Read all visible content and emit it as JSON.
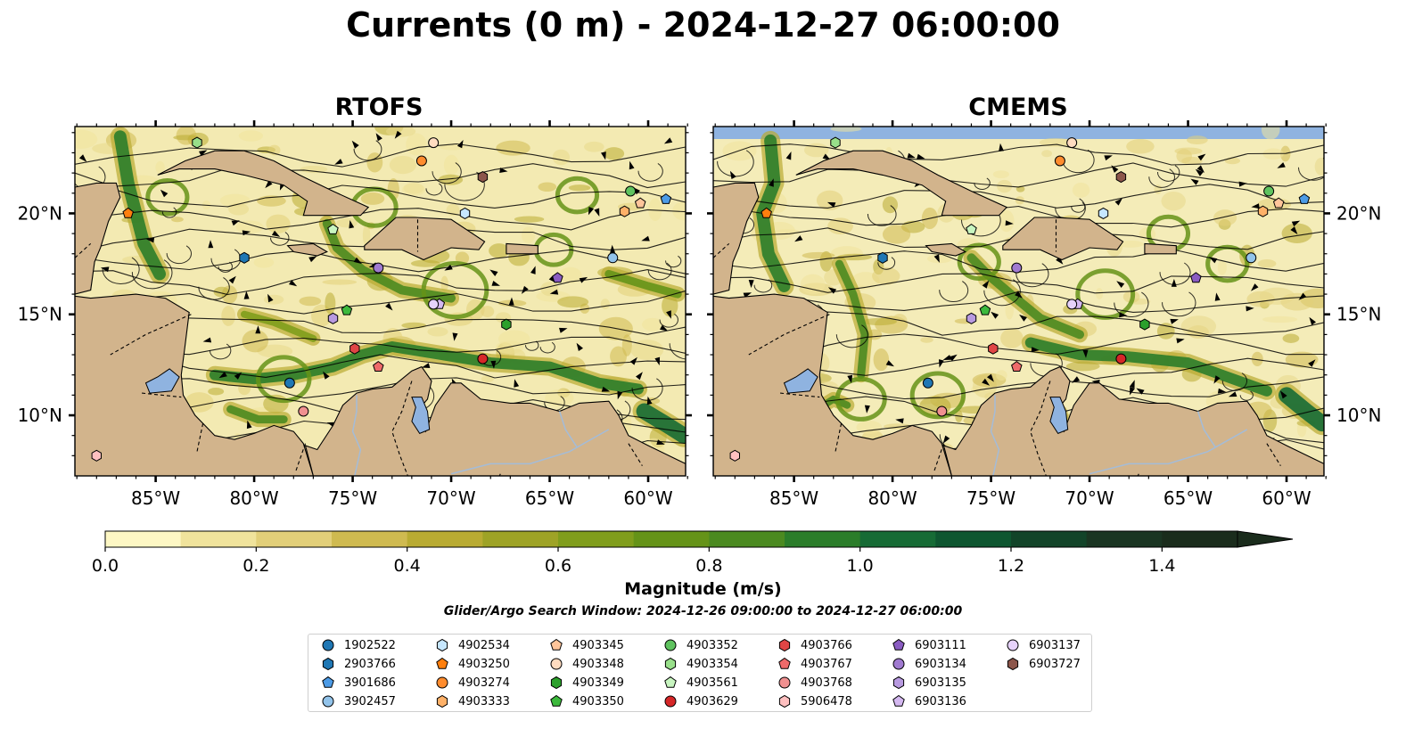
{
  "title": "Currents (0 m) - 2024-12-27 06:00:00",
  "panels": [
    {
      "title": "RTOFS",
      "seaColor": "#f3eab2"
    },
    {
      "title": "CMEMS",
      "seaColor": "#f4ecb8",
      "topBand": "#8fb3e0"
    }
  ],
  "colors": {
    "land": "#d2b48c",
    "lake": "#8fb3e0",
    "river": "#a4bcd8",
    "coast": "#000000"
  },
  "lat_labels": [
    "20°N",
    "15°N",
    "10°N"
  ],
  "lon_labels": [
    "85°W",
    "80°W",
    "75°W",
    "70°W",
    "65°W",
    "60°W"
  ],
  "colorbar": {
    "label": "Magnitude (m/s)",
    "ticks": [
      "0.0",
      "0.2",
      "0.4",
      "0.6",
      "0.8",
      "1.0",
      "1.2",
      "1.4"
    ],
    "colors": [
      "#fdf7c4",
      "#f0e39c",
      "#e2cf79",
      "#cfba50",
      "#b9ab32",
      "#9ea326",
      "#809d1c",
      "#659318",
      "#4b8a20",
      "#2b7d2a",
      "#166b35",
      "#0e5630",
      "#124429",
      "#1a3522",
      "#1a2c1c"
    ],
    "extend": "max"
  },
  "search_window": "Glider/Argo Search Window: 2024-12-26 09:00:00 to 2024-12-27 06:00:00",
  "legend": [
    {
      "id": "1902522",
      "shape": "circle",
      "color": "#1f77b4"
    },
    {
      "id": "2903766",
      "shape": "hexagon",
      "color": "#1f77b4"
    },
    {
      "id": "3901686",
      "shape": "pentagon",
      "color": "#4c9be6"
    },
    {
      "id": "3902457",
      "shape": "circle",
      "color": "#92c3ea"
    },
    {
      "id": "4902534",
      "shape": "hexagon",
      "color": "#c6e7ff"
    },
    {
      "id": "4903250",
      "shape": "pentagon",
      "color": "#ff7f0e"
    },
    {
      "id": "4903274",
      "shape": "circle",
      "color": "#ff8c2e"
    },
    {
      "id": "4903333",
      "shape": "hexagon",
      "color": "#ffb168"
    },
    {
      "id": "4903345",
      "shape": "pentagon",
      "color": "#ffc59a"
    },
    {
      "id": "4903348",
      "shape": "circle",
      "color": "#ffdcc0"
    },
    {
      "id": "4903349",
      "shape": "hexagon",
      "color": "#2ca02c"
    },
    {
      "id": "4903350",
      "shape": "pentagon",
      "color": "#3cb93c"
    },
    {
      "id": "4903352",
      "shape": "circle",
      "color": "#5fc35f"
    },
    {
      "id": "4903354",
      "shape": "hexagon",
      "color": "#98df8a"
    },
    {
      "id": "4903561",
      "shape": "pentagon",
      "color": "#c8f5c0"
    },
    {
      "id": "4903629",
      "shape": "circle",
      "color": "#d62728"
    },
    {
      "id": "4903766",
      "shape": "hexagon",
      "color": "#e04545"
    },
    {
      "id": "4903767",
      "shape": "pentagon",
      "color": "#ee6a6a"
    },
    {
      "id": "4903768",
      "shape": "circle",
      "color": "#f09090"
    },
    {
      "id": "5906478",
      "shape": "hexagon",
      "color": "#ffc0c0"
    },
    {
      "id": "6903111",
      "shape": "pentagon",
      "color": "#8a5cc2"
    },
    {
      "id": "6903134",
      "shape": "circle",
      "color": "#a07ad0"
    },
    {
      "id": "6903135",
      "shape": "hexagon",
      "color": "#b89ae0"
    },
    {
      "id": "6903136",
      "shape": "pentagon",
      "color": "#d4b8f0"
    },
    {
      "id": "6903137",
      "shape": "circle",
      "color": "#e6d2fa"
    },
    {
      "id": "6903727",
      "shape": "hexagon",
      "color": "#8c564b"
    }
  ],
  "floats": [
    {
      "id": "1902522",
      "lon": -78.2,
      "lat": 11.6
    },
    {
      "id": "2903766",
      "lon": -80.5,
      "lat": 17.8
    },
    {
      "id": "3901686",
      "lon": -59.1,
      "lat": 20.7
    },
    {
      "id": "3902457",
      "lon": -61.8,
      "lat": 17.8
    },
    {
      "id": "4902534",
      "lon": -69.3,
      "lat": 20.0
    },
    {
      "id": "4903250",
      "lon": -86.4,
      "lat": 20.0
    },
    {
      "id": "4903274",
      "lon": -71.5,
      "lat": 22.6
    },
    {
      "id": "4903333",
      "lon": -61.2,
      "lat": 20.1
    },
    {
      "id": "4903345",
      "lon": -60.4,
      "lat": 20.5
    },
    {
      "id": "4903348",
      "lon": -70.9,
      "lat": 23.5
    },
    {
      "id": "4903349",
      "lon": -67.2,
      "lat": 14.5
    },
    {
      "id": "4903350",
      "lon": -75.3,
      "lat": 15.2
    },
    {
      "id": "4903352",
      "lon": -60.9,
      "lat": 21.1
    },
    {
      "id": "4903354",
      "lon": -82.9,
      "lat": 23.5
    },
    {
      "id": "4903561",
      "lon": -76.0,
      "lat": 19.2
    },
    {
      "id": "4903629",
      "lon": -68.4,
      "lat": 12.8
    },
    {
      "id": "4903766",
      "lon": -74.9,
      "lat": 13.3
    },
    {
      "id": "4903767",
      "lon": -73.7,
      "lat": 12.4
    },
    {
      "id": "4903768",
      "lon": -77.5,
      "lat": 10.2
    },
    {
      "id": "5906478",
      "lon": -88.0,
      "lat": 8.0
    },
    {
      "id": "6903111",
      "lon": -64.6,
      "lat": 16.8
    },
    {
      "id": "6903134",
      "lon": -73.7,
      "lat": 17.3
    },
    {
      "id": "6903135",
      "lon": -76.0,
      "lat": 14.8
    },
    {
      "id": "6903136",
      "lon": -70.6,
      "lat": 15.5
    },
    {
      "id": "6903137",
      "lon": -70.9,
      "lat": 15.5
    },
    {
      "id": "6903727",
      "lon": -68.4,
      "lat": 21.8
    }
  ]
}
